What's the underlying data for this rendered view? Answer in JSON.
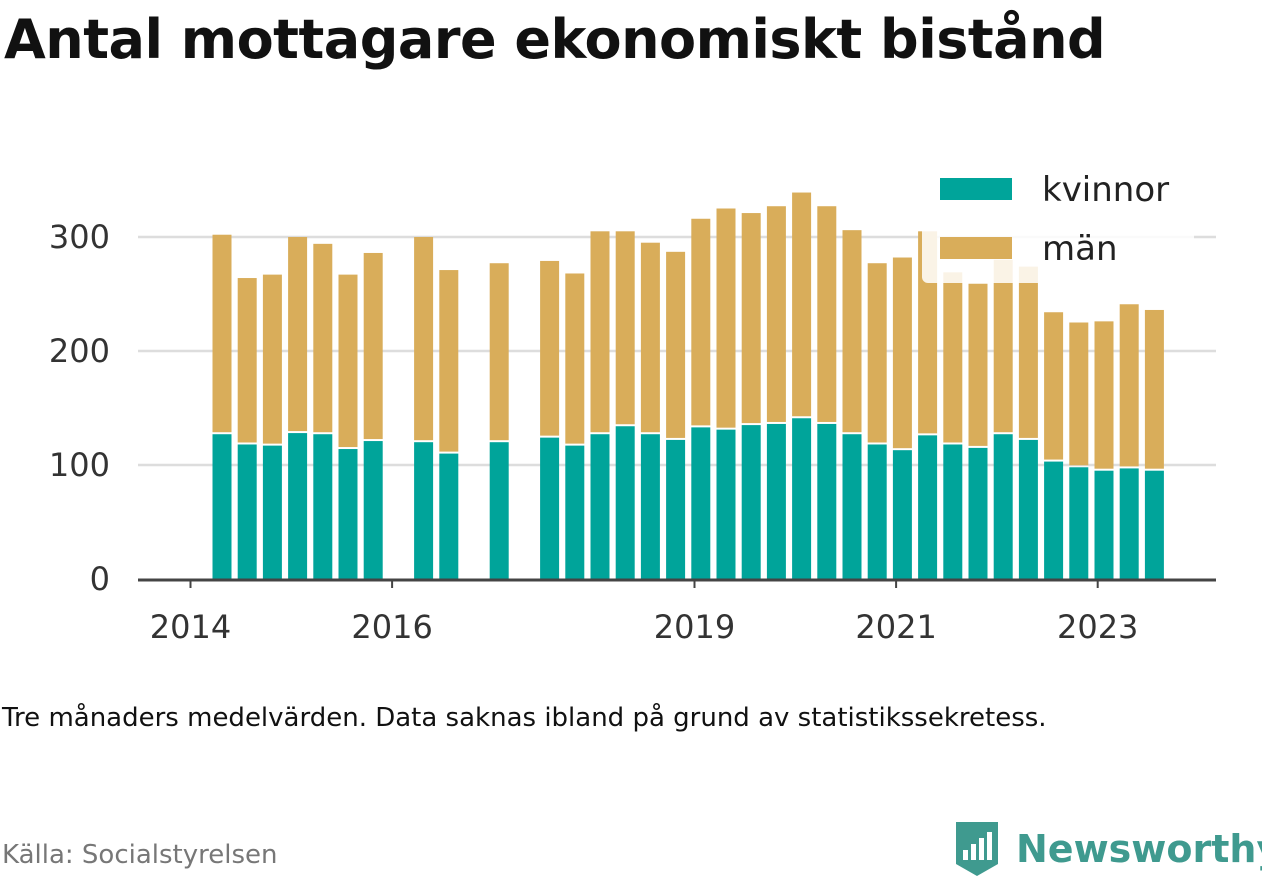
{
  "header": {
    "title": "Antal mottagare ekonomiskt bistånd"
  },
  "footer": {
    "note": "Tre månaders medelvärden. Data saknas ibland på grund av statistikssekretess.",
    "source": "Källa: Socialstyrelsen",
    "brand": "Newsworthy",
    "brand_icon": "bar-chart-badge-icon"
  },
  "colors": {
    "kvinnor": "#00a49a",
    "man": "#d9ad5a",
    "grid": "#dddddd",
    "axis": "#444444",
    "brand": "#3f9a8f"
  },
  "chart_data": {
    "type": "bar",
    "stacked": true,
    "ylim": [
      0,
      340
    ],
    "yticks": [
      0,
      100,
      200,
      300
    ],
    "xticks": [
      "2014",
      "2016",
      "2019",
      "2021",
      "2023"
    ],
    "grid": true,
    "legend_position": "top-right",
    "categories": [
      "2014-Q2",
      "2014-Q3",
      "2014-Q4",
      "2015-Q1",
      "2015-Q2",
      "2015-Q3",
      "2015-Q4",
      "2016-Q1",
      "2016-Q2",
      "2016-Q3",
      "2016-Q4",
      "2017-Q1",
      "2017-Q2",
      "2017-Q3",
      "2017-Q4",
      "2018-Q1",
      "2018-Q2",
      "2018-Q3",
      "2018-Q4",
      "2019-Q1",
      "2019-Q2",
      "2019-Q3",
      "2019-Q4",
      "2020-Q1",
      "2020-Q2",
      "2020-Q3",
      "2020-Q4",
      "2021-Q1",
      "2021-Q2",
      "2021-Q3",
      "2021-Q4",
      "2022-Q1",
      "2022-Q2",
      "2022-Q3",
      "2022-Q4",
      "2023-Q1",
      "2023-Q2",
      "2023-Q3",
      "2023-Q4"
    ],
    "series": [
      {
        "name": "kvinnor",
        "color": "#00a49a",
        "values": [
          127,
          118,
          117,
          128,
          127,
          114,
          121,
          null,
          120,
          110,
          null,
          120,
          null,
          124,
          117,
          127,
          134,
          127,
          122,
          133,
          131,
          135,
          136,
          141,
          136,
          127,
          118,
          113,
          126,
          118,
          115,
          127,
          122,
          103,
          98,
          95,
          97,
          95,
          null
        ]
      },
      {
        "name": "män",
        "color": "#d9ad5a",
        "values": [
          175,
          146,
          150,
          172,
          167,
          153,
          165,
          null,
          180,
          161,
          null,
          157,
          null,
          155,
          151,
          178,
          171,
          168,
          165,
          183,
          194,
          186,
          191,
          198,
          191,
          179,
          159,
          169,
          179,
          151,
          144,
          153,
          152,
          131,
          127,
          131,
          144,
          141,
          null
        ]
      }
    ]
  }
}
